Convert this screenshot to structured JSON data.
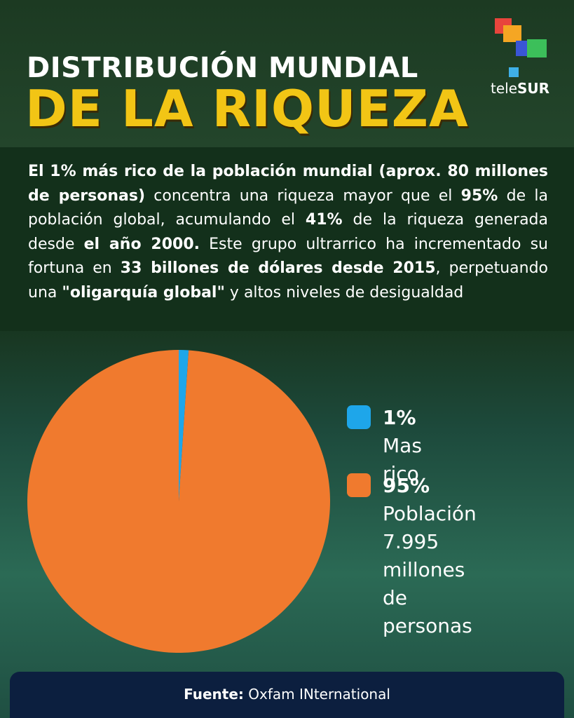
{
  "header": {
    "title_line1": "DISTRIBUCIÓN MUNDIAL",
    "title_line2": "DE LA RIQUEZA",
    "logo": [
      "tele",
      "SUR"
    ]
  },
  "body": [
    {
      "text": "El 1% más rico de la población mundial (aprox. 80 millones de personas)",
      "bold": true
    },
    {
      "text": " concentra una riqueza mayor que el ",
      "bold": false
    },
    {
      "text": "95%",
      "bold": true
    },
    {
      "text": " de la población global, acumulando el ",
      "bold": false
    },
    {
      "text": "41%",
      "bold": true
    },
    {
      "text": " de la riqueza generada desde ",
      "bold": false
    },
    {
      "text": "el año 2000.",
      "bold": true
    },
    {
      "text": " Este grupo ultrarrico ha incrementado su fortuna en ",
      "bold": false
    },
    {
      "text": "33 billones de dólares desde 2015",
      "bold": true
    },
    {
      "text": ", perpetuando una ",
      "bold": false
    },
    {
      "text": "\"oligarquía global\"",
      "bold": true
    },
    {
      "text": " y altos niveles de desigualdad",
      "bold": false
    }
  ],
  "chart_data": {
    "type": "pie",
    "categories": [
      "Mas rico",
      "Población\n7.995 millones\nde personas"
    ],
    "values": [
      1,
      95
    ],
    "value_labels": [
      "1%",
      "95%"
    ],
    "colors": [
      "#1ea6ea",
      "#f07a2e"
    ]
  },
  "footer": {
    "label": "Fuente:",
    "source": "Oxfam INternational"
  }
}
